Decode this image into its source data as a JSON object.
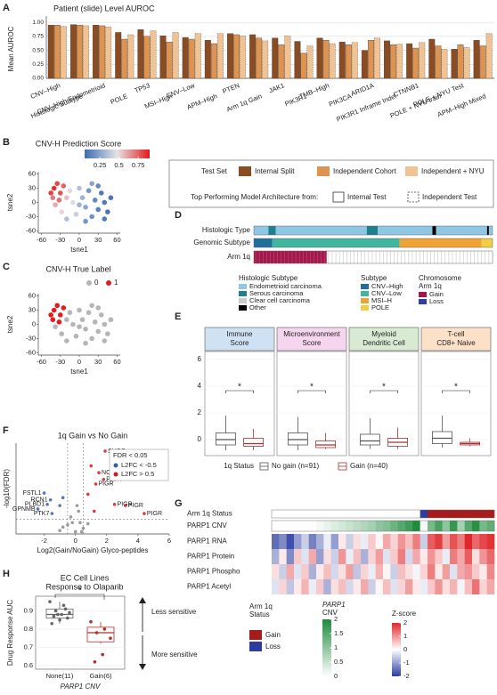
{
  "chart_data": [
    {
      "panel": "A",
      "type": "bar",
      "title": "Patient (slide) Level AUROC",
      "ylabel": "Mean AUROC",
      "ylim": [
        0,
        1.05
      ],
      "yticks": [
        {
          "value": 0,
          "label": "0.00"
        },
        {
          "value": 0.25,
          "label": "0.25"
        },
        {
          "value": 0.5,
          "label": "0.50"
        },
        {
          "value": 0.75,
          "label": "0.75"
        },
        {
          "value": 1,
          "label": "1.00"
        }
      ],
      "grid": true,
      "categories": [
        "CNV–High",
        "Histologic Subtype",
        "CNV–High Endometrioid",
        "POLE",
        "TP53",
        "MSI–High",
        "CNV–Low",
        "APM–High",
        "PTEN",
        "Arm 1q Gain",
        "JAK1",
        "PIK3R1",
        "TMB–High",
        "PIK3CA",
        "ARID1A",
        "PIK3R1 Inframe Indel",
        "CTNNB1",
        "POLE + NYU train",
        "POLE + NYU Test",
        "APM–High Mixed"
      ],
      "series": [
        {
          "name": "Internal Split",
          "color": "#8b4c22",
          "values": [
            0.95,
            0.96,
            0.95,
            0.82,
            0.87,
            0.76,
            0.73,
            0.68,
            0.8,
            0.78,
            0.72,
            0.66,
            0.72,
            0.65,
            0.5,
            0.67,
            0.62,
            0.7,
            0.52,
            0.68
          ]
        },
        {
          "name": "Independent Cohort",
          "color": "#df9350",
          "values": [
            0.95,
            0.95,
            0.94,
            0.7,
            0.75,
            0.65,
            0.7,
            0.62,
            0.78,
            0.72,
            0.6,
            0.45,
            0.68,
            0.6,
            0.68,
            0.6,
            0.54,
            0.58,
            0.6,
            0.58
          ]
        },
        {
          "name": "Independent + NYU",
          "color": "#efc393",
          "values": [
            0.93,
            0.94,
            0.92,
            0.78,
            0.85,
            0.82,
            0.8,
            0.8,
            0.76,
            0.67,
            0.76,
            0.58,
            0.62,
            0.64,
            0.72,
            0.61,
            0.64,
            0.52,
            0.55,
            0.8
          ]
        }
      ],
      "legend_title": "Test Set",
      "architecture_title": "Top Performing Model Architecture from:",
      "architecture": [
        "Internal Test",
        "Independent Test"
      ]
    },
    {
      "panel": "B",
      "type": "scatter",
      "title": "CNV-H Prediction Score",
      "xlabel": "tsne1",
      "ylabel": "tsne2",
      "xlim": [
        -65,
        65
      ],
      "ylim": [
        -65,
        65
      ],
      "xticks": [
        -60,
        -30,
        0,
        30,
        60
      ],
      "yticks": [
        -60,
        -30,
        0,
        30,
        60
      ],
      "x": [
        -40,
        -35,
        -30,
        -42,
        -25,
        -38,
        -20,
        -28,
        -15,
        -10,
        -5,
        0,
        5,
        10,
        15,
        20,
        25,
        30,
        35,
        40,
        45,
        50,
        30,
        10,
        -20,
        20,
        -45,
        40,
        0,
        -32
      ],
      "y": [
        30,
        40,
        20,
        10,
        35,
        -5,
        10,
        -20,
        25,
        0,
        -25,
        30,
        10,
        -10,
        25,
        -30,
        5,
        -15,
        20,
        0,
        -20,
        10,
        35,
        -40,
        -35,
        40,
        20,
        -35,
        -5,
        5
      ],
      "scores": [
        0.85,
        0.8,
        0.78,
        0.7,
        0.75,
        0.6,
        0.55,
        0.5,
        0.5,
        0.45,
        0.4,
        0.35,
        0.3,
        0.25,
        0.2,
        0.18,
        0.15,
        0.12,
        0.1,
        0.1,
        0.08,
        0.08,
        0.15,
        0.2,
        0.35,
        0.25,
        0.82,
        0.1,
        0.3,
        0.72
      ],
      "colorbar": {
        "lim": [
          0.05,
          0.9
        ],
        "ticks": [
          0.25,
          0.5,
          0.75
        ],
        "colors": [
          "#3b6db4",
          "#e4e4e4",
          "#e41a1c"
        ]
      }
    },
    {
      "panel": "C",
      "type": "scatter",
      "title": "CNV-H True Label",
      "xlabel": "tsne1",
      "ylabel": "tsne2",
      "xlim": [
        -65,
        65
      ],
      "ylim": [
        -65,
        65
      ],
      "xticks": [
        -60,
        -30,
        0,
        30,
        60
      ],
      "yticks": [
        -60,
        -30,
        0,
        30,
        60
      ],
      "x": [
        -40,
        -35,
        -30,
        -42,
        -25,
        -38,
        -20,
        -28,
        -15,
        -10,
        -5,
        0,
        5,
        10,
        15,
        20,
        25,
        30,
        35,
        40,
        45,
        50,
        30,
        10,
        -20,
        20,
        -45,
        40,
        0,
        -32
      ],
      "y": [
        30,
        40,
        20,
        10,
        35,
        -5,
        10,
        -20,
        25,
        0,
        -25,
        30,
        10,
        -10,
        25,
        -30,
        5,
        -15,
        20,
        0,
        -20,
        10,
        35,
        -40,
        -35,
        40,
        20,
        -35,
        -5,
        5
      ],
      "classes": [
        1,
        1,
        1,
        1,
        1,
        0,
        0,
        0,
        0,
        0,
        0,
        0,
        0,
        0,
        0,
        0,
        0,
        0,
        0,
        0,
        0,
        0,
        0,
        0,
        0,
        0,
        1,
        0,
        0,
        1
      ],
      "class_labels": [
        "0",
        "1"
      ],
      "class_colors": [
        "#b5b5b5",
        "#e41a1c"
      ]
    },
    {
      "panel": "D",
      "type": "tracks",
      "rows": [
        {
          "name": "Histologic Type",
          "legend": 0,
          "segments": [
            [
              0,
              8
            ],
            [
              1,
              4
            ],
            [
              0,
              50
            ],
            [
              1,
              6
            ],
            [
              0,
              30
            ],
            [
              3,
              2
            ],
            [
              0,
              28
            ],
            [
              3,
              1
            ],
            [
              0,
              2
            ]
          ]
        },
        {
          "name": "Genomic Subtype",
          "legend": 1,
          "segments": [
            [
              0,
              10
            ],
            [
              1,
              70
            ],
            [
              2,
              45
            ],
            [
              3,
              6
            ]
          ]
        },
        {
          "name": "Arm 1q",
          "legend": 2,
          "segments": [
            [
              0,
              40
            ],
            [
              null,
              91
            ]
          ]
        }
      ],
      "legends": [
        {
          "title": [
            "Histologic Subtype"
          ],
          "labels": [
            "Endometrioid carcinoma",
            "Serous carcinoma",
            "Clear cell carcinoma",
            "Other"
          ],
          "colors": [
            "#8fc6e3",
            "#1f7f8c",
            "#cccccc",
            "#000000"
          ]
        },
        {
          "title": [
            "Subtype"
          ],
          "labels": [
            "CNV–High",
            "CNV–Low",
            "MSI–H",
            "POLE"
          ],
          "colors": [
            "#1f6f9a",
            "#40b59f",
            "#f0a233",
            "#f1cf45"
          ]
        },
        {
          "title": [
            "Chromosome",
            "Arm 1q"
          ],
          "labels": [
            "Gain",
            "Loss"
          ],
          "colors": [
            "#a3174a",
            "#2e3f9e"
          ]
        }
      ]
    },
    {
      "panel": "E",
      "type": "box",
      "ylim": [
        -1.2,
        6.6
      ],
      "yticks": [
        0,
        2,
        4,
        6
      ],
      "status_title": "1q Status",
      "groups": [
        "No gain (n=91)",
        "Gain (n=40)"
      ],
      "colors": [
        "#555555",
        "#a83232"
      ],
      "panels": [
        {
          "title": [
            "Immune",
            "Score"
          ],
          "color": "#cfe2f3",
          "sig": "*",
          "groups": [
            [
              -0.8,
              -0.4,
              0,
              0.5,
              1.8
            ],
            [
              -0.8,
              -0.5,
              -0.3,
              0.1,
              0.8
            ]
          ]
        },
        {
          "title": [
            "Microenvironment",
            "Score"
          ],
          "color": "#f6d6ee",
          "sig": "*",
          "groups": [
            [
              -0.8,
              -0.4,
              0,
              0.5,
              1.7
            ],
            [
              -0.7,
              -0.6,
              -0.4,
              -0.1,
              0.5
            ]
          ]
        },
        {
          "title": [
            "Myeloid",
            "Dendritic Cell"
          ],
          "color": "#d9ead3",
          "sig": "*",
          "groups": [
            [
              -0.7,
              -0.4,
              -0.1,
              0.4,
              1.6
            ],
            [
              -0.7,
              -0.5,
              -0.2,
              0.1,
              0.9
            ]
          ]
        },
        {
          "title": [
            "T-cell",
            "CD8+ Naive"
          ],
          "color": "#fce0c8",
          "sig": "*",
          "groups": [
            [
              -0.6,
              -0.3,
              0.1,
              0.6,
              1.8
            ],
            [
              -0.5,
              -0.4,
              -0.3,
              -0.2,
              0.1
            ]
          ]
        }
      ]
    },
    {
      "panel": "F",
      "type": "scatter",
      "title": "1q Gain vs No Gain",
      "xlabel": "Log2(Gain/NoGain) Glyco-peptides",
      "ylabel": "-log10(FDR)",
      "xlim": [
        -3.8,
        6
      ],
      "ylim": [
        0,
        8
      ],
      "xticks": [
        -2,
        0,
        2,
        4,
        6
      ],
      "hlines": [
        1.3
      ],
      "vlines": [
        -0.5,
        0.5
      ],
      "legend_title": "FDR < 0.05",
      "series": [
        {
          "name": "L2FC < -0.5",
          "color": "#3a5fa8",
          "x": [
            -2.0,
            -1.6,
            -1.8,
            -2.4,
            -1.5,
            -1.0,
            -0.8
          ],
          "y": [
            3.6,
            3.0,
            2.6,
            2.2,
            1.8,
            2.5,
            3.2
          ],
          "labels": [
            "FSTL1",
            "RCN1",
            "PLBD1",
            "GPNMB",
            "PTK7",
            null,
            null
          ]
        },
        {
          "name": "L2FC > 0.5",
          "color": "#d7191c",
          "x": [
            1.9,
            1.5,
            1.8,
            1.3,
            2.5,
            3.2,
            4.4,
            1.0,
            0.8,
            1.2
          ],
          "y": [
            7.3,
            5.4,
            4.8,
            4.4,
            2.6,
            2.5,
            1.8,
            6.0,
            3.5,
            2.0
          ],
          "labels": [
            "SUCO",
            "NCSTN",
            "PIGR",
            "PIGR",
            "PIGR",
            "PIGR",
            "PIGR",
            null,
            null,
            null
          ]
        },
        {
          "name": null,
          "color": "#8a8a8a",
          "x": [
            -1,
            -0.5,
            0,
            0.3,
            0.5,
            -0.3,
            0.2,
            -0.8,
            0.8,
            0.1,
            -0.2,
            0.4
          ],
          "y": [
            0.3,
            0.8,
            0.2,
            1.0,
            0.5,
            1.5,
            2.0,
            0.6,
            0.9,
            2.5,
            1.0,
            0.2
          ],
          "labels": [
            null,
            null,
            null,
            null,
            null,
            null,
            null,
            null,
            null,
            null,
            null,
            null
          ]
        }
      ]
    },
    {
      "panel": "G",
      "type": "heatmap",
      "status_row": {
        "name": "Arm 1q Status",
        "values": [
          null,
          null,
          null,
          null,
          null,
          null,
          null,
          null,
          null,
          null,
          null,
          null,
          null,
          null,
          null,
          null,
          null,
          null,
          null,
          null,
          1,
          0,
          0,
          0,
          0,
          0,
          0,
          0,
          0,
          0
        ]
      },
      "cnv_row": {
        "name": "PARP1 CNV",
        "values": [
          0,
          0,
          0,
          0,
          0,
          0,
          0.1,
          0.2,
          0.3,
          0.4,
          0.5,
          0.6,
          0.7,
          0.8,
          1.0,
          1.1,
          1.3,
          1.5,
          1.7,
          2.0,
          0.1,
          1.2,
          1.6,
          1.0,
          1.8,
          0.8,
          1.5,
          1.9,
          1.2,
          1.4
        ]
      },
      "rows": [
        {
          "name": "PARP1 RNA",
          "values": [
            -1.5,
            -1.2,
            -1.8,
            -1.0,
            -0.5,
            -1.3,
            -0.8,
            -0.2,
            -1.0,
            0.2,
            -0.5,
            0.3,
            -0.2,
            0.5,
            0.1,
            0.8,
            0.4,
            1.0,
            0.6,
            1.2,
            -0.5,
            1.5,
            1.8,
            0.9,
            1.6,
            1.2,
            2.0,
            1.4,
            1.7,
            1.9
          ]
        },
        {
          "name": "PARP1 Protein",
          "values": [
            -0.8,
            0.2,
            -1.2,
            0.5,
            -0.3,
            0.8,
            -1.0,
            0.3,
            -0.5,
            1.0,
            -0.2,
            0.6,
            -0.8,
            0.4,
            0.9,
            -0.3,
            0.5,
            1.2,
            -0.4,
            0.8,
            0.2,
            1.0,
            0.5,
            -0.2,
            1.2,
            0.8,
            1.5,
            0.3,
            1.0,
            1.4
          ]
        },
        {
          "name": "PARP1 Phospho",
          "values": [
            0.3,
            -0.5,
            0.8,
            -0.3,
            0.5,
            -0.8,
            0.2,
            0.6,
            -0.4,
            0.3,
            0.9,
            -0.6,
            0.4,
            -0.2,
            0.7,
            0.1,
            -0.5,
            0.6,
            0.3,
            -0.1,
            0.4,
            1.2,
            0.2,
            0.9,
            -0.3,
            0.8,
            1.0,
            0.5,
            0.2,
            1.1
          ]
        },
        {
          "name": "PARP1 Acetyl",
          "values": [
            -0.3,
            0.4,
            -0.6,
            0.2,
            0.7,
            -0.2,
            0.5,
            -0.8,
            0.3,
            0.6,
            -0.4,
            0.2,
            0.8,
            -0.5,
            0.1,
            0.6,
            -0.3,
            0.4,
            0.9,
            0.2,
            -0.2,
            0.5,
            1.0,
            0.3,
            0.7,
            -0.1,
            0.6,
            1.3,
            0.4,
            0.8
          ]
        }
      ],
      "status_legend": {
        "title": [
          "Arm 1q",
          "Status"
        ],
        "labels": [
          "Gain",
          "Loss"
        ],
        "colors": [
          "#a51c1c",
          "#2e3d9c"
        ]
      },
      "cnv_scale": {
        "title": [
          "PARP1",
          "CNV"
        ],
        "lim": [
          0,
          2
        ],
        "ticks": [
          0,
          0.5,
          1,
          1.5,
          2
        ],
        "colors": [
          "#ffffff",
          "#1e8a3c"
        ]
      },
      "z_scale": {
        "title": [
          "Z-score"
        ],
        "lim": [
          -2,
          2
        ],
        "ticks": [
          -2,
          -1,
          0,
          1,
          2
        ],
        "colors": [
          "#2b3da0",
          "#ffffff",
          "#e0282a"
        ]
      }
    },
    {
      "panel": "H",
      "type": "box",
      "title": [
        "EC Cell Lines",
        "Response to Olaparib"
      ],
      "ylabel": "Drug Response AUC",
      "xlabel": "PARP1 CNV",
      "ylim": [
        0.58,
        0.98
      ],
      "yticks": [
        0.6,
        0.7,
        0.8,
        0.9
      ],
      "sig": "*",
      "annotations": [
        "Less sensitive",
        "More sensitive"
      ],
      "groups_h": [
        {
          "name": "None(11)",
          "color": "#666666",
          "stats": [
            0.83,
            0.86,
            0.88,
            0.91,
            0.95
          ],
          "points": [
            0.95,
            0.93,
            0.9,
            0.89,
            0.88,
            0.87,
            0.86,
            0.85,
            0.83,
            0.91,
            0.88
          ]
        },
        {
          "name": "Gain(6)",
          "color": "#b03030",
          "stats": [
            0.72,
            0.73,
            0.78,
            0.81,
            0.84
          ],
          "points": [
            0.84,
            0.8,
            0.78,
            0.75,
            0.66,
            0.62
          ]
        }
      ]
    }
  ]
}
